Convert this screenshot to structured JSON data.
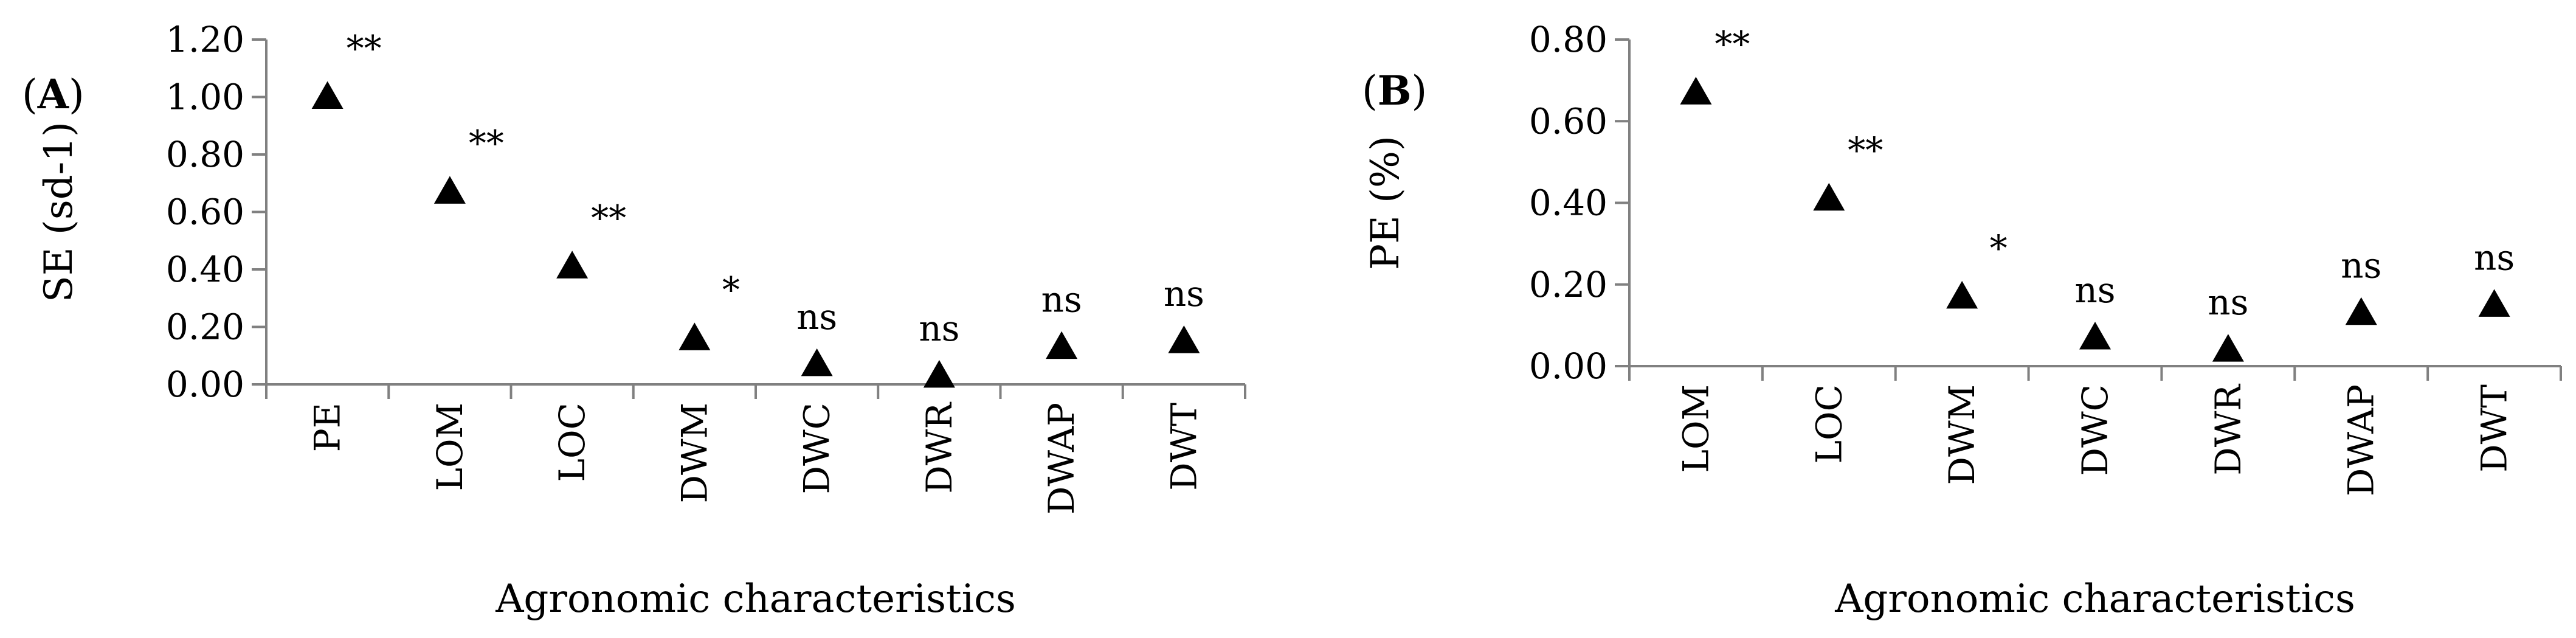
{
  "chart_data": [
    {
      "type": "scatter",
      "panel_label": {
        "open": "(",
        "letter": "A",
        "close": ")"
      },
      "title": "",
      "xlabel": "Agronomic characteristics",
      "ylabel": "SE (sd-1)",
      "ylim": [
        0,
        1.2
      ],
      "yticks": [
        "0.00",
        "0.20",
        "0.40",
        "0.60",
        "0.80",
        "1.00",
        "1.20"
      ],
      "categories": [
        "PE",
        "LOM",
        "LOC",
        "DWM",
        "DWC",
        "DWR",
        "DWAP",
        "DWT"
      ],
      "values": [
        1.0,
        0.67,
        0.41,
        0.16,
        0.07,
        0.03,
        0.13,
        0.15
      ],
      "significance": [
        "**",
        "**",
        "**",
        "*",
        "ns",
        "ns",
        "ns",
        "ns"
      ],
      "marker": "triangle",
      "grid": false
    },
    {
      "type": "scatter",
      "panel_label": {
        "open": "(",
        "letter": "B",
        "close": ")"
      },
      "title": "",
      "xlabel": "Agronomic characteristics",
      "ylabel": "PE (%)",
      "ylim": [
        0,
        0.8
      ],
      "yticks": [
        "0.00",
        "0.20",
        "0.40",
        "0.60",
        "0.80"
      ],
      "categories": [
        "LOM",
        "LOC",
        "DWM",
        "DWC",
        "DWR",
        "DWAP",
        "DWT"
      ],
      "values": [
        0.67,
        0.41,
        0.17,
        0.07,
        0.04,
        0.13,
        0.15
      ],
      "significance": [
        "**",
        "**",
        "*",
        "ns",
        "ns",
        "ns",
        "ns"
      ],
      "marker": "triangle",
      "grid": false
    }
  ]
}
